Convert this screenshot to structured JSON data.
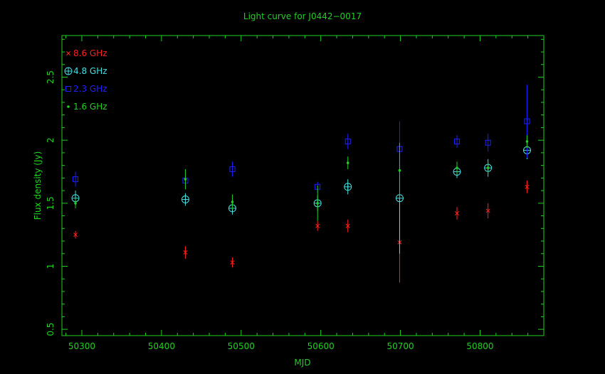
{
  "chart_data": {
    "type": "scatter",
    "title": "Light curve for J0442−0017",
    "xlabel": "MJD",
    "ylabel": "Flux density (Jy)",
    "xlim": [
      50275,
      50880
    ],
    "ylim": [
      0.45,
      2.83
    ],
    "x_ticks": [
      50300,
      50400,
      50500,
      50600,
      50700,
      50800
    ],
    "x_tick_labels": [
      "50300",
      "50400",
      "50500",
      "50600",
      "50700",
      "50800"
    ],
    "y_ticks": [
      0.5,
      1,
      1.5,
      2,
      2.5
    ],
    "y_tick_labels": [
      "0.5",
      "1",
      "1.5",
      "2",
      "2.5"
    ],
    "grid": false,
    "legend_position": "top-left",
    "series": [
      {
        "name": "8.6 GHz",
        "marker": "x",
        "color": "#ff2020",
        "points": [
          {
            "x": 50292,
            "y": 1.25,
            "err": 0.03
          },
          {
            "x": 50430,
            "y": 1.11,
            "err": 0.05
          },
          {
            "x": 50489,
            "y": 1.03,
            "err": 0.04
          },
          {
            "x": 50596,
            "y": 1.32,
            "err": 0.04
          },
          {
            "x": 50634,
            "y": 1.32,
            "err": 0.05
          },
          {
            "x": 50699,
            "y": 1.19,
            "err": 0.32
          },
          {
            "x": 50771,
            "y": 1.42,
            "err": 0.05
          },
          {
            "x": 50810,
            "y": 1.44,
            "err": 0.06
          },
          {
            "x": 50859,
            "y": 1.63,
            "err": 0.05
          }
        ]
      },
      {
        "name": "4.8 GHz",
        "marker": "circle-plus",
        "color": "#40e0e0",
        "points": [
          {
            "x": 50292,
            "y": 1.54,
            "err": 0.06
          },
          {
            "x": 50430,
            "y": 1.53,
            "err": 0.05
          },
          {
            "x": 50489,
            "y": 1.46,
            "err": 0.05
          },
          {
            "x": 50596,
            "y": 1.5,
            "err": 0.06
          },
          {
            "x": 50634,
            "y": 1.63,
            "err": 0.06
          },
          {
            "x": 50699,
            "y": 1.54,
            "err": 0.44
          },
          {
            "x": 50771,
            "y": 1.75,
            "err": 0.05
          },
          {
            "x": 50810,
            "y": 1.78,
            "err": 0.07
          },
          {
            "x": 50859,
            "y": 1.92,
            "err": 0.07
          }
        ]
      },
      {
        "name": "2.3 GHz",
        "marker": "square",
        "color": "#2020ff",
        "points": [
          {
            "x": 50292,
            "y": 1.69,
            "err": 0.06
          },
          {
            "x": 50430,
            "y": 1.68,
            "err": 0.03
          },
          {
            "x": 50489,
            "y": 1.77,
            "err": 0.06
          },
          {
            "x": 50596,
            "y": 1.63,
            "err": 0.04
          },
          {
            "x": 50634,
            "y": 1.99,
            "err": 0.06
          },
          {
            "x": 50699,
            "y": 1.93,
            "err": 0.22
          },
          {
            "x": 50771,
            "y": 1.99,
            "err": 0.05
          },
          {
            "x": 50810,
            "y": 1.98,
            "err": 0.07
          },
          {
            "x": 50859,
            "y": 2.15,
            "err": 0.29
          }
        ]
      },
      {
        "name": "1.6 GHz",
        "marker": "dot",
        "color": "#20d020",
        "points": [
          {
            "x": 50292,
            "y": 1.5,
            "err": 0.04
          },
          {
            "x": 50430,
            "y": 1.69,
            "err": 0.08
          },
          {
            "x": 50489,
            "y": 1.51,
            "err": 0.06
          },
          {
            "x": 50596,
            "y": 1.5,
            "err": 0.14
          },
          {
            "x": 50634,
            "y": 1.82,
            "err": 0.05
          },
          {
            "x": 50699,
            "y": 1.76,
            "err": 0.22
          },
          {
            "x": 50771,
            "y": 1.78,
            "err": 0.05
          },
          {
            "x": 50810,
            "y": 1.78,
            "err": 0.05
          },
          {
            "x": 50859,
            "y": 1.99,
            "err": 0.05
          }
        ]
      }
    ]
  },
  "colors": {
    "background": "#000000",
    "axes": "#20d020",
    "text": "#20d020"
  }
}
